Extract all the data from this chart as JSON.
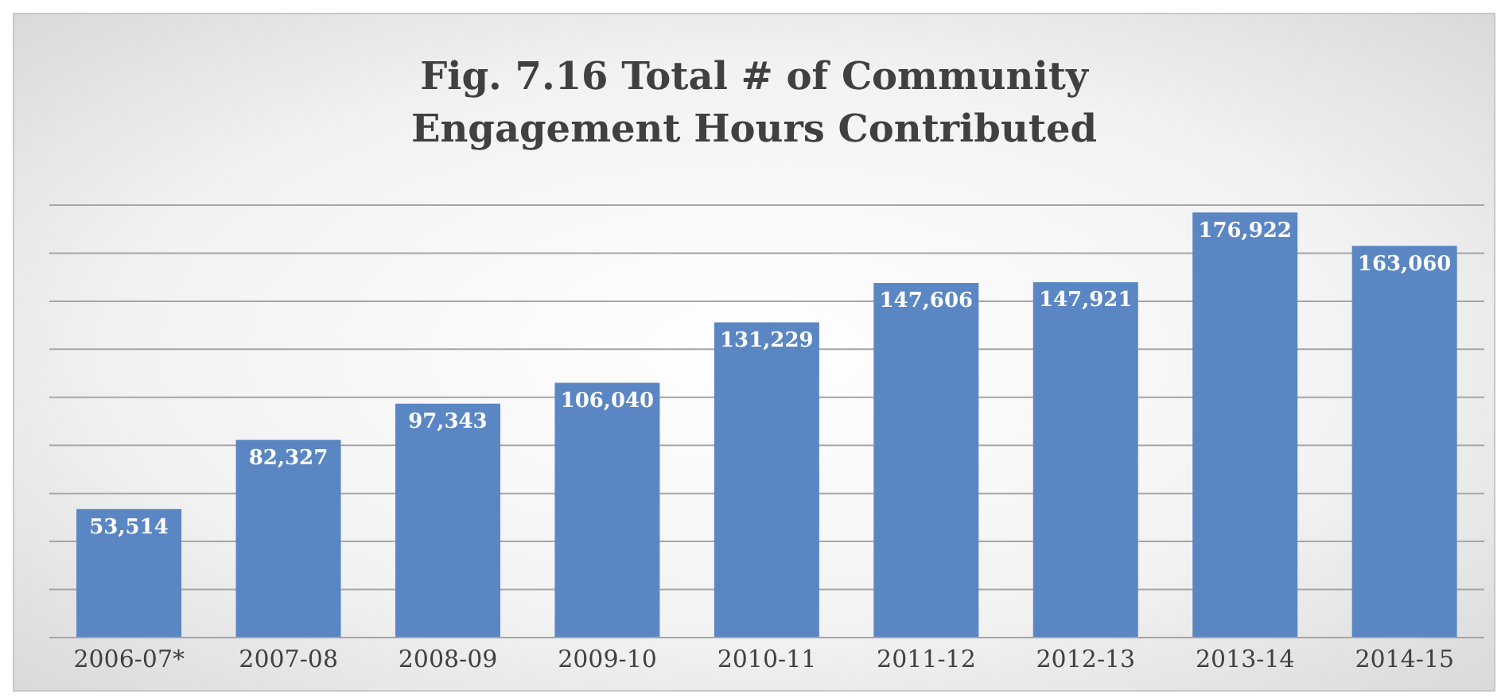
{
  "chart_data": {
    "type": "bar",
    "title": "Fig. 7.16 Total # of Community Engagement Hours Contributed",
    "categories": [
      "2006-07*",
      "2007-08",
      "2008-09",
      "2009-10",
      "2010-11",
      "2011-12",
      "2012-13",
      "2013-14",
      "2014-15"
    ],
    "values": [
      53514,
      82327,
      97343,
      106040,
      131229,
      147606,
      147921,
      176922,
      163060
    ],
    "value_labels": [
      "53,514",
      "82,327",
      "97,343",
      "106,040",
      "131,229",
      "147,606",
      "147,921",
      "176,922",
      "163,060"
    ],
    "color": "#5b86c4",
    "grid": "y",
    "tick_labels": "x"
  }
}
